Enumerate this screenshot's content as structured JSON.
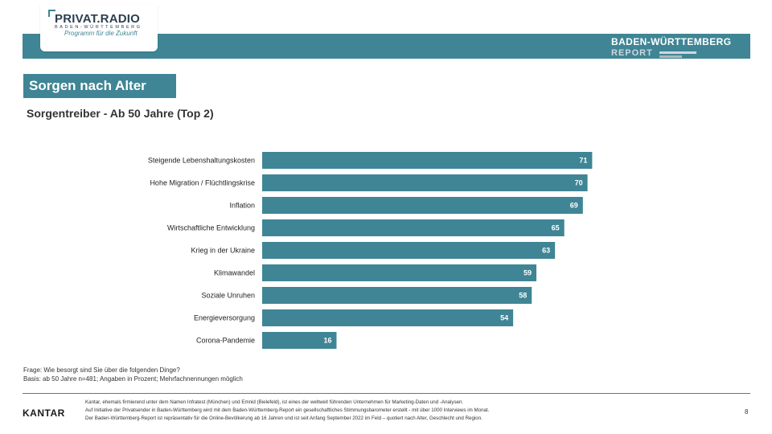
{
  "header": {
    "logo_main": "PRIVAT.RADIO",
    "logo_sub": "BADEN-WÜRTTEMBERG",
    "logo_tagline": "Programm für die Zukunft",
    "report_line1": "BADEN-WÜRTTEMBERG",
    "report_line2": "REPORT"
  },
  "section_title": "Sorgen nach Alter",
  "subtitle": "Sorgentreiber - Ab 50 Jahre (Top 2)",
  "colors": {
    "accent": "#3f8595"
  },
  "chart_data": {
    "type": "bar",
    "orientation": "horizontal",
    "categories": [
      "Steigende Lebenshaltungskosten",
      "Hohe Migration / Flüchtlingskrise",
      "Inflation",
      "Wirtschaftliche Entwicklung",
      "Krieg in der Ukraine",
      "Klimawandel",
      "Soziale Unruhen",
      "Energieversorgung",
      "Corona-Pandemie"
    ],
    "values": [
      71,
      70,
      69,
      65,
      63,
      59,
      58,
      54,
      16
    ],
    "xlim": [
      0,
      100
    ],
    "grid": false,
    "legend": "none",
    "bar_color": "#3f8595"
  },
  "question": "Frage: Wie besorgt sind Sie über die folgenden Dinge?",
  "basis": "Basis: ab 50 Jahre n=481; Angaben in Prozent; Mehrfachnennungen möglich",
  "footer": {
    "brand": "KANTAR",
    "line1": "Kantar, ehemals firmierend unter dem Namen Infratest (München) und Emnid (Bielefeld), ist eines der weltweit führenden Unternehmen für Marketing-Daten und -Analysen.",
    "line2": "Auf Initiative der Privatsender in Baden-Württemberg wird mit dem Baden-Württemberg-Report ein gesellschaftliches Stimmungsbarometer erstellt - mit über 1000 Interviews im Monat.",
    "line3": "Der Baden-Württemberg-Report ist repräsentativ für die Online-Bevölkerung ab 16 Jahren und ist seit Anfang September 2022 im Feld – quotiert nach Alter, Geschlecht und Region.",
    "page_number": "8"
  }
}
